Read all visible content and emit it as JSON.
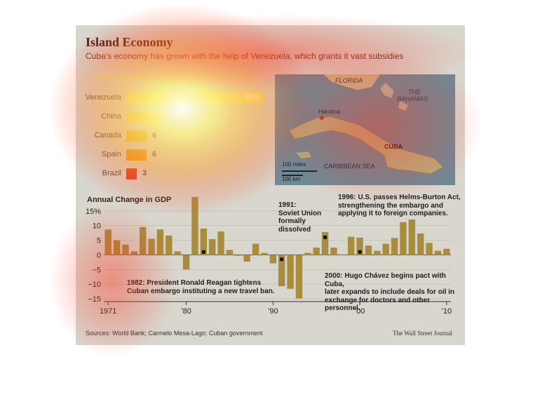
{
  "header": {
    "title": "Island Economy",
    "subtitle": "Cuba’s economy has grown with the help of Venezuela, which grants it vast subsidies"
  },
  "trade": {
    "title": "Cuba’s top trading partners, by share of goods",
    "items": [
      {
        "country": "Venezuela",
        "value": 40,
        "label": "40%"
      },
      {
        "country": "China",
        "value": 11,
        "label": ""
      },
      {
        "country": "Canada",
        "value": 6,
        "label": "6"
      },
      {
        "country": "Spain",
        "value": 6,
        "label": "6"
      },
      {
        "country": "Brazil",
        "value": 3,
        "label": "3"
      }
    ],
    "colors": [
      "#f2e27a",
      "#ecd86a",
      "#e6c23a",
      "#e39a2a",
      "#d9442a"
    ]
  },
  "map": {
    "labels": {
      "florida": "FLORIDA",
      "bahamas_1": "THE",
      "bahamas_2": "BAHAMAS",
      "havana": "Havana",
      "cuba": "CUBA",
      "sea": "CARIBBEAN SEA",
      "scale_miles": "100 miles",
      "scale_km": "100 km"
    }
  },
  "chart_data": {
    "type": "bar",
    "title": "Annual Change in GDP",
    "x": [
      1971,
      1972,
      1973,
      1974,
      1975,
      1976,
      1977,
      1978,
      1979,
      1980,
      1981,
      1982,
      1983,
      1984,
      1985,
      1986,
      1987,
      1988,
      1989,
      1990,
      1991,
      1992,
      1993,
      1994,
      1995,
      1996,
      1997,
      1998,
      1999,
      2000,
      2001,
      2002,
      2003,
      2004,
      2005,
      2006,
      2007,
      2008,
      2009,
      2010
    ],
    "values": [
      8.7,
      5,
      3.5,
      1.2,
      9.5,
      5.5,
      8.7,
      6.6,
      1.2,
      -5,
      19.8,
      9,
      5.4,
      8,
      1.7,
      -0.3,
      -2.3,
      3.8,
      0.7,
      -2.9,
      -10.7,
      -11.6,
      -14.9,
      0.7,
      2.5,
      7.8,
      2.5,
      0.2,
      6.2,
      5.9,
      3.2,
      1.4,
      3.8,
      5.8,
      11.2,
      12.1,
      7.3,
      4.1,
      1.4,
      2.1
    ],
    "ylim": [
      -15,
      20
    ],
    "yticks": [
      "15%",
      "10",
      "5",
      "0",
      "−5",
      "−10",
      "−15"
    ],
    "yticks_values": [
      15,
      10,
      5,
      0,
      -5,
      -10,
      -15
    ],
    "xticks": [
      {
        "year": 1971,
        "label": "1971"
      },
      {
        "year": 1980,
        "label": "’80"
      },
      {
        "year": 1990,
        "label": "’90"
      },
      {
        "year": 2000,
        "label": "’00"
      },
      {
        "year": 2010,
        "label": "’10"
      }
    ],
    "bar_color": "#a98d3e",
    "markers": [
      {
        "year": 1982,
        "value": 1
      },
      {
        "year": 1991,
        "value": -1.5
      },
      {
        "year": 1996,
        "value": 6
      },
      {
        "year": 2000,
        "value": 1
      }
    ]
  },
  "annotations": {
    "a1991": {
      "year": "1991:",
      "line1": "Soviet Union",
      "line2": "formally",
      "line3": "dissolved"
    },
    "a1996": {
      "year": "1996:",
      "line1": " U.S. passes Helms-Burton Act,",
      "line2": "strengthening the embargo and",
      "line3": "applying it to foreign companies."
    },
    "a1982": {
      "year": "1982:",
      "line1": " President Ronald Reagan tightens",
      "line2": "Cuban embargo instituting a new travel ban."
    },
    "a2000": {
      "year": "2000:",
      "line1": " Hugo Chávez begins pact with Cuba,",
      "line2": "later expands to include deals for oil in",
      "line3": "exchange for doctors and other personnel."
    }
  },
  "footer": {
    "sources": "Sources: World Bank; Carmelo Mesa-Lago; Cuban government",
    "credit": "The Wall Street Journal"
  }
}
